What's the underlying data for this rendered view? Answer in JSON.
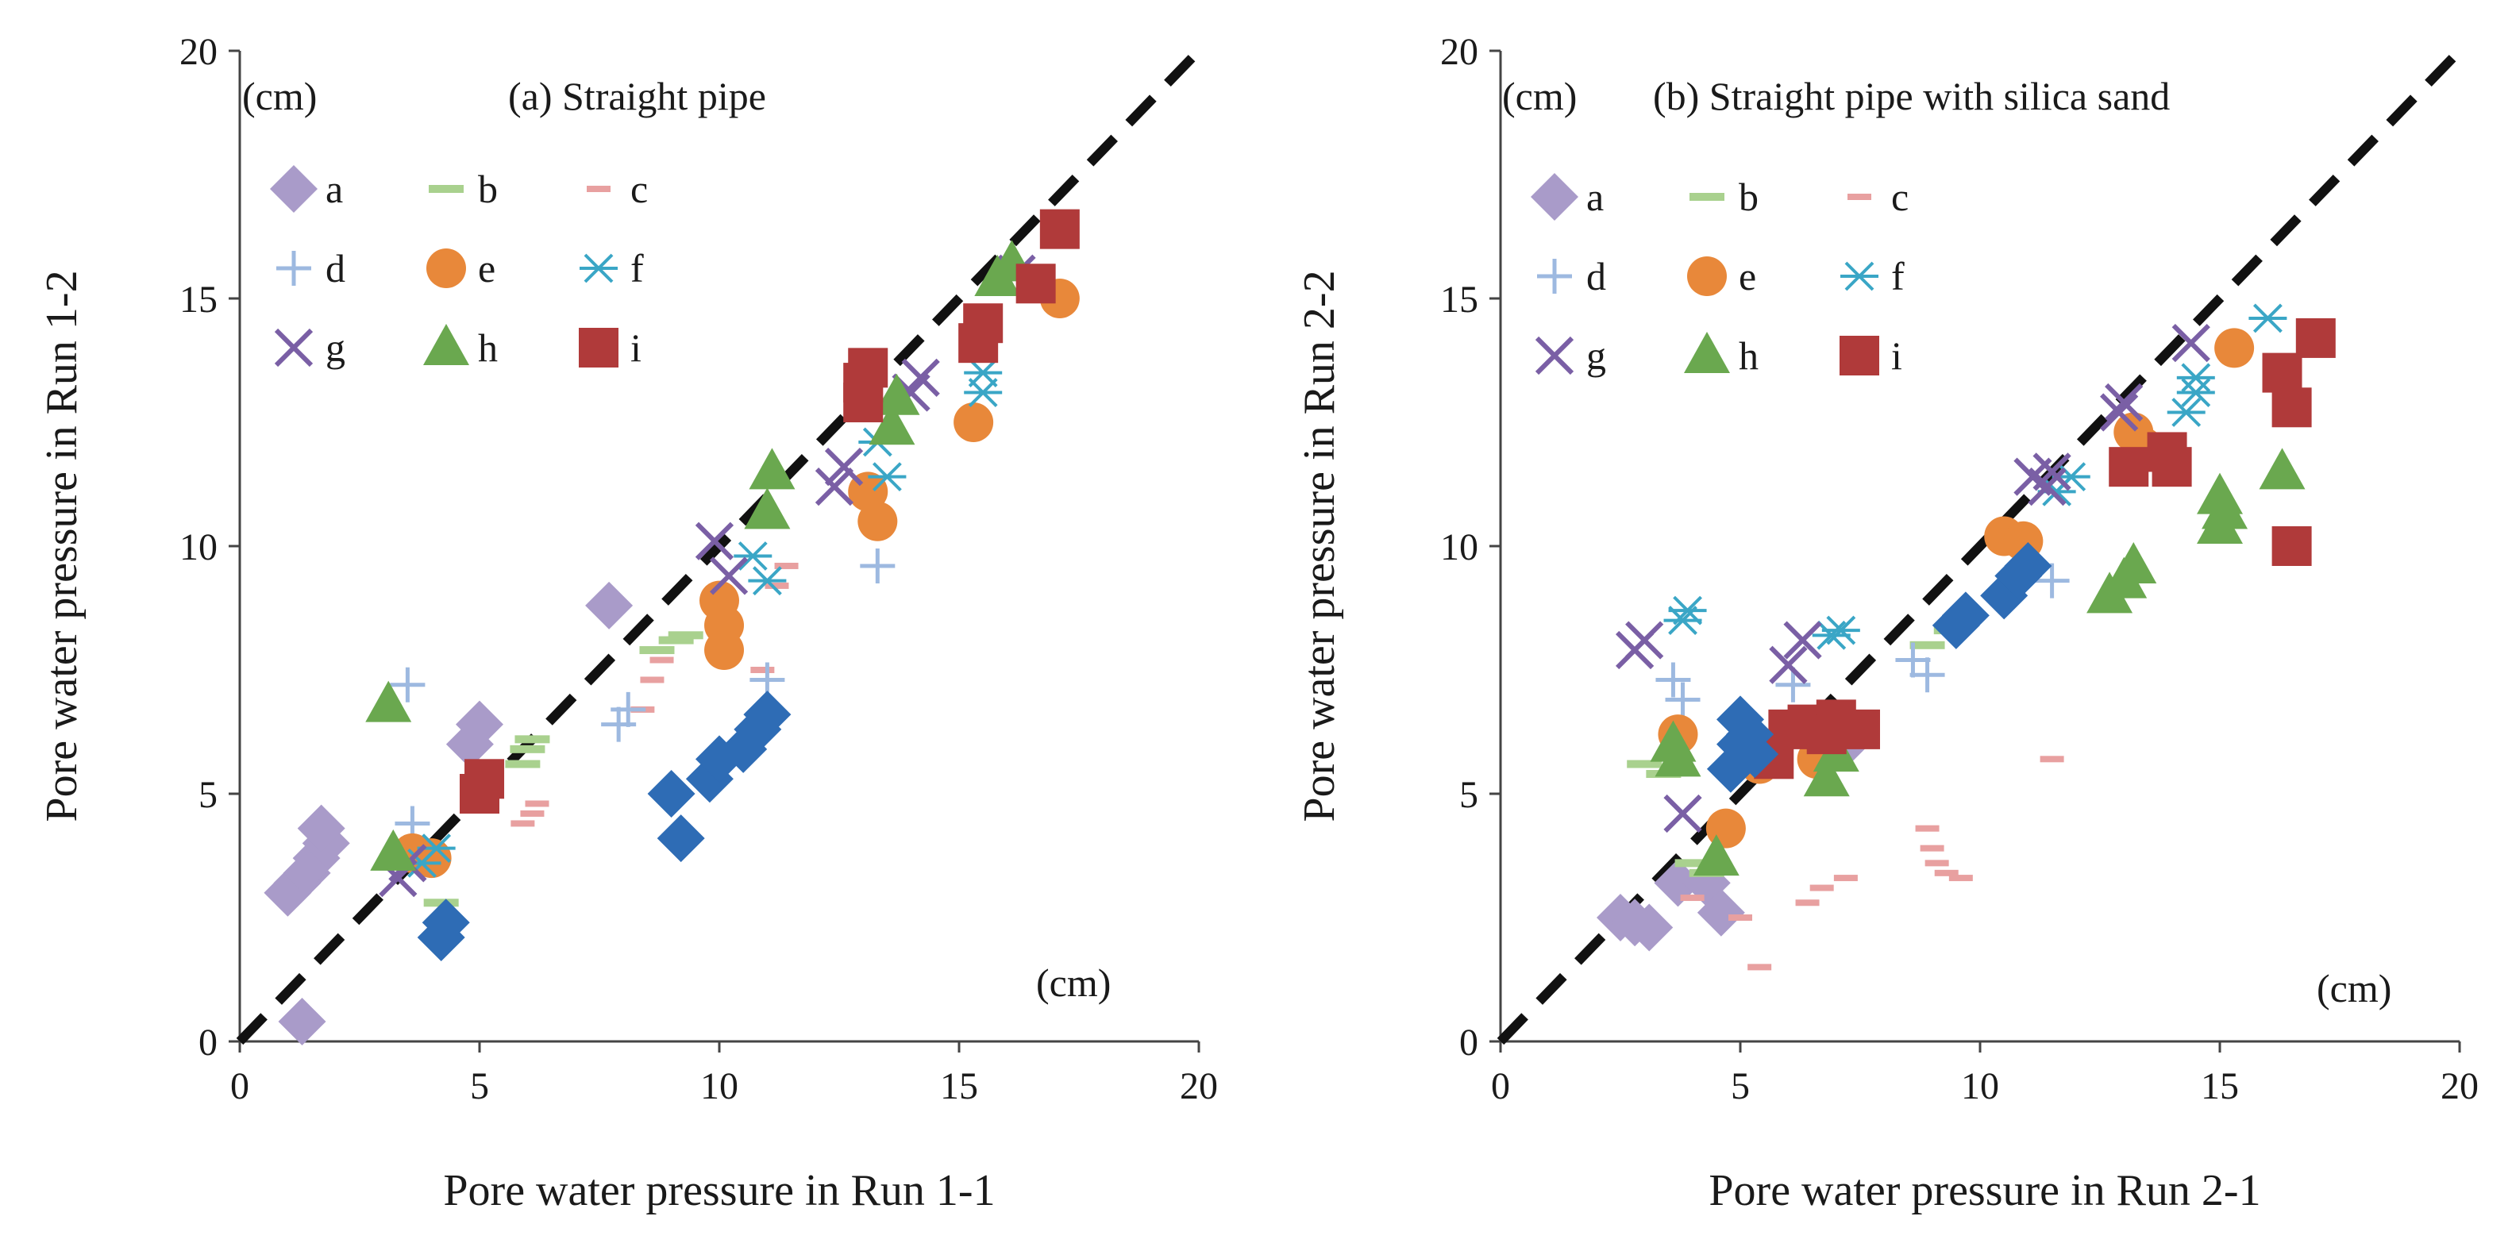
{
  "chart_data": [
    {
      "type": "scatter",
      "title": "(a) Straight pipe",
      "unit_y": "(cm)",
      "unit_x": "(cm)",
      "xlabel": "Pore water pressure in Run 1-1",
      "ylabel": "Pore water pressure in Run 1-2",
      "xlim": [
        0,
        20
      ],
      "ylim": [
        0,
        20
      ],
      "xticks": [
        "0",
        "5",
        "10",
        "15",
        "20"
      ],
      "yticks": [
        "0",
        "5",
        "10",
        "15",
        "20"
      ],
      "reference_line": {
        "name": "1:1 line",
        "x": [
          0,
          20
        ],
        "y": [
          0,
          20
        ],
        "style": "dashed"
      },
      "legend": [
        "a",
        "b",
        "c",
        "d",
        "e",
        "f",
        "g",
        "h",
        "i"
      ],
      "series": [
        {
          "name": "a",
          "marker": "diamond",
          "color": "#a99bc9",
          "points": [
            [
              1.0,
              3.0
            ],
            [
              1.2,
              3.2
            ],
            [
              1.4,
              3.4
            ],
            [
              1.6,
              3.7
            ],
            [
              1.8,
              4.0
            ],
            [
              1.7,
              4.3
            ],
            [
              1.3,
              0.4
            ],
            [
              4.8,
              6.0
            ],
            [
              5.0,
              6.4
            ],
            [
              7.7,
              8.8
            ]
          ]
        },
        {
          "name": "b",
          "marker": "dash",
          "color": "#a9d18e",
          "points": [
            [
              4.2,
              2.8
            ],
            [
              5.9,
              5.6
            ],
            [
              6.0,
              5.9
            ],
            [
              6.1,
              6.1
            ],
            [
              8.7,
              7.9
            ],
            [
              9.1,
              8.1
            ],
            [
              9.3,
              8.2
            ]
          ]
        },
        {
          "name": "c",
          "marker": "small-dash",
          "color": "#e8a0a0",
          "points": [
            [
              5.9,
              4.4
            ],
            [
              6.1,
              4.6
            ],
            [
              6.2,
              4.8
            ],
            [
              8.4,
              6.7
            ],
            [
              8.6,
              7.3
            ],
            [
              8.8,
              7.7
            ],
            [
              10.9,
              7.5
            ],
            [
              11.2,
              9.2
            ],
            [
              11.4,
              9.6
            ]
          ]
        },
        {
          "name": "d",
          "marker": "plus",
          "color": "#9db9e0",
          "points": [
            [
              3.5,
              7.2
            ],
            [
              3.6,
              4.4
            ],
            [
              7.9,
              6.4
            ],
            [
              8.1,
              6.7
            ],
            [
              11.0,
              7.3
            ],
            [
              13.3,
              9.6
            ]
          ]
        },
        {
          "name": "e",
          "marker": "circle",
          "color": "#e8883a",
          "points": [
            [
              3.6,
              3.8
            ],
            [
              4.0,
              3.7
            ],
            [
              10.0,
              8.9
            ],
            [
              10.1,
              8.4
            ],
            [
              10.1,
              7.9
            ],
            [
              13.1,
              11.1
            ],
            [
              13.3,
              10.5
            ],
            [
              15.3,
              12.5
            ],
            [
              17.1,
              15.0
            ]
          ]
        },
        {
          "name": "f",
          "marker": "asterisk",
          "color": "#3aa6c6",
          "points": [
            [
              3.8,
              3.6
            ],
            [
              4.1,
              3.9
            ],
            [
              10.7,
              9.8
            ],
            [
              11.0,
              9.3
            ],
            [
              13.5,
              11.4
            ],
            [
              13.3,
              12.1
            ],
            [
              15.5,
              13.1
            ],
            [
              15.5,
              13.5
            ]
          ]
        },
        {
          "name": "g",
          "marker": "x",
          "color": "#7a5fa5",
          "points": [
            [
              3.3,
              3.3
            ],
            [
              3.5,
              3.6
            ],
            [
              9.9,
              10.1
            ],
            [
              10.2,
              9.4
            ],
            [
              12.4,
              11.2
            ],
            [
              12.6,
              11.6
            ],
            [
              14.0,
              13.1
            ],
            [
              14.2,
              13.4
            ],
            [
              16.2,
              15.5
            ]
          ]
        },
        {
          "name": "h",
          "marker": "triangle",
          "color": "#6aa84f",
          "points": [
            [
              3.1,
              6.8
            ],
            [
              3.2,
              3.8
            ],
            [
              11.0,
              10.7
            ],
            [
              11.1,
              11.5
            ],
            [
              13.6,
              12.4
            ],
            [
              13.7,
              13.0
            ],
            [
              15.8,
              15.4
            ],
            [
              16.1,
              15.7
            ]
          ]
        },
        {
          "name": "i",
          "marker": "square",
          "color": "#b03a3a",
          "points": [
            [
              5.0,
              5.0
            ],
            [
              5.1,
              5.3
            ],
            [
              13.0,
              12.9
            ],
            [
              13.0,
              13.3
            ],
            [
              13.1,
              13.6
            ],
            [
              15.4,
              14.1
            ],
            [
              15.5,
              14.5
            ],
            [
              16.6,
              15.3
            ],
            [
              17.1,
              16.4
            ]
          ]
        },
        {
          "name": "unlabeled-blue-diamond",
          "marker": "diamond",
          "color": "#2e6cb5",
          "points": [
            [
              4.2,
              2.1
            ],
            [
              4.3,
              2.4
            ],
            [
              9.0,
              5.0
            ],
            [
              9.2,
              4.1
            ],
            [
              9.8,
              5.3
            ],
            [
              10.0,
              5.7
            ],
            [
              10.5,
              5.9
            ],
            [
              10.8,
              6.3
            ],
            [
              11.0,
              6.6
            ]
          ]
        }
      ]
    },
    {
      "type": "scatter",
      "title": "(b) Straight pipe with silica sand",
      "unit_y": "(cm)",
      "unit_x": "(cm)",
      "xlabel": "Pore water pressure in Run 2-1",
      "ylabel": "Pore water pressure in Run 2-2",
      "xlim": [
        0,
        20
      ],
      "ylim": [
        0,
        20
      ],
      "xticks": [
        "0",
        "5",
        "10",
        "15",
        "20"
      ],
      "yticks": [
        "0",
        "5",
        "10",
        "15",
        "20"
      ],
      "reference_line": {
        "name": "1:1 line",
        "x": [
          0,
          20
        ],
        "y": [
          0,
          20
        ],
        "style": "dashed"
      },
      "legend": [
        "a",
        "b",
        "c",
        "d",
        "e",
        "f",
        "g",
        "h",
        "i"
      ],
      "series": [
        {
          "name": "a",
          "marker": "diamond",
          "color": "#a99bc9",
          "points": [
            [
              2.5,
              2.5
            ],
            [
              2.8,
              2.4
            ],
            [
              3.1,
              2.3
            ],
            [
              3.7,
              3.2
            ],
            [
              4.3,
              3.2
            ],
            [
              4.6,
              2.6
            ],
            [
              7.2,
              6.0
            ]
          ]
        },
        {
          "name": "b",
          "marker": "dash",
          "color": "#a9d18e",
          "points": [
            [
              3.0,
              5.6
            ],
            [
              3.4,
              5.4
            ],
            [
              4.0,
              3.6
            ],
            [
              4.3,
              3.4
            ],
            [
              8.9,
              8.0
            ],
            [
              9.4,
              8.3
            ]
          ]
        },
        {
          "name": "c",
          "marker": "small-dash",
          "color": "#e8a0a0",
          "points": [
            [
              4.0,
              2.9
            ],
            [
              5.0,
              2.5
            ],
            [
              5.4,
              1.5
            ],
            [
              6.4,
              2.8
            ],
            [
              6.7,
              3.1
            ],
            [
              7.2,
              3.3
            ],
            [
              8.9,
              4.3
            ],
            [
              9.0,
              3.9
            ],
            [
              9.1,
              3.6
            ],
            [
              9.3,
              3.4
            ],
            [
              9.6,
              3.3
            ],
            [
              11.5,
              5.7
            ]
          ]
        },
        {
          "name": "d",
          "marker": "plus",
          "color": "#9db9e0",
          "points": [
            [
              3.6,
              7.3
            ],
            [
              3.8,
              6.9
            ],
            [
              6.1,
              7.2
            ],
            [
              8.6,
              7.7
            ],
            [
              8.9,
              7.4
            ],
            [
              11.5,
              9.3
            ],
            [
              13.2,
              11.6
            ]
          ]
        },
        {
          "name": "e",
          "marker": "circle",
          "color": "#e8883a",
          "points": [
            [
              3.7,
              6.2
            ],
            [
              4.7,
              4.3
            ],
            [
              5.4,
              5.6
            ],
            [
              6.6,
              5.7
            ],
            [
              10.5,
              10.2
            ],
            [
              10.9,
              10.1
            ],
            [
              13.2,
              12.3
            ],
            [
              13.4,
              12.0
            ],
            [
              15.3,
              14.0
            ]
          ]
        },
        {
          "name": "f",
          "marker": "asterisk",
          "color": "#3aa6c6",
          "points": [
            [
              3.8,
              8.5
            ],
            [
              3.9,
              8.7
            ],
            [
              6.9,
              8.2
            ],
            [
              7.1,
              8.3
            ],
            [
              11.6,
              11.1
            ],
            [
              11.9,
              11.4
            ],
            [
              14.3,
              12.7
            ],
            [
              14.5,
              13.1
            ],
            [
              14.5,
              13.4
            ],
            [
              16.0,
              14.6
            ]
          ]
        },
        {
          "name": "g",
          "marker": "x",
          "color": "#7a5fa5",
          "points": [
            [
              2.8,
              7.9
            ],
            [
              3.0,
              8.1
            ],
            [
              3.8,
              4.6
            ],
            [
              6.0,
              7.6
            ],
            [
              6.3,
              8.1
            ],
            [
              11.1,
              11.4
            ],
            [
              11.4,
              11.2
            ],
            [
              11.5,
              11.5
            ],
            [
              12.9,
              12.7
            ],
            [
              13.0,
              12.9
            ],
            [
              14.4,
              14.1
            ]
          ]
        },
        {
          "name": "h",
          "marker": "triangle",
          "color": "#6aa84f",
          "points": [
            [
              3.6,
              6.0
            ],
            [
              3.7,
              5.7
            ],
            [
              4.5,
              3.7
            ],
            [
              6.8,
              5.3
            ],
            [
              7.0,
              5.8
            ],
            [
              12.7,
              9.0
            ],
            [
              13.0,
              9.3
            ],
            [
              13.2,
              9.6
            ],
            [
              15.0,
              10.4
            ],
            [
              15.1,
              10.7
            ],
            [
              15.0,
              11.0
            ],
            [
              16.3,
              11.5
            ]
          ]
        },
        {
          "name": "i",
          "marker": "square",
          "color": "#b03a3a",
          "points": [
            [
              5.7,
              5.7
            ],
            [
              6.0,
              6.3
            ],
            [
              6.4,
              6.4
            ],
            [
              6.8,
              6.2
            ],
            [
              7.0,
              6.5
            ],
            [
              7.5,
              6.3
            ],
            [
              13.1,
              11.6
            ],
            [
              13.9,
              11.9
            ],
            [
              14.0,
              11.6
            ],
            [
              16.3,
              13.5
            ],
            [
              16.5,
              12.8
            ],
            [
              16.5,
              10.0
            ],
            [
              17.0,
              14.2
            ]
          ]
        },
        {
          "name": "unlabeled-blue-diamond",
          "marker": "diamond",
          "color": "#2e6cb5",
          "points": [
            [
              4.8,
              5.5
            ],
            [
              5.0,
              6.0
            ],
            [
              5.0,
              6.5
            ],
            [
              5.2,
              6.2
            ],
            [
              5.3,
              5.8
            ],
            [
              9.5,
              8.4
            ],
            [
              9.7,
              8.6
            ],
            [
              10.5,
              9.0
            ],
            [
              10.8,
              9.4
            ],
            [
              11.0,
              9.6
            ]
          ]
        }
      ]
    }
  ]
}
